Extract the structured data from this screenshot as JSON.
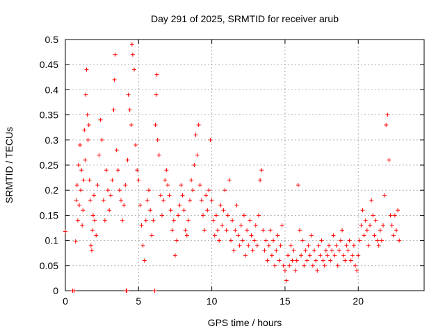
{
  "chart_data": {
    "type": "scatter",
    "title": "Day 291 of 2025, SRMTID for receiver arub",
    "xlabel": "GPS time / hours",
    "ylabel": "SRMTID / TECUs",
    "xlim": [
      0,
      24.5
    ],
    "ylim": [
      0,
      0.5
    ],
    "x_ticks": [
      0,
      5,
      10,
      15,
      20
    ],
    "x_tick_labels": [
      "0",
      "5",
      "10",
      "15",
      "20"
    ],
    "y_ticks": [
      0,
      0.05,
      0.1,
      0.15,
      0.2,
      0.25,
      0.3,
      0.35,
      0.4,
      0.45,
      0.5
    ],
    "y_tick_labels": [
      "0",
      "0.05",
      "0.1",
      "0.15",
      "0.2",
      "0.25",
      "0.3",
      "0.35",
      "0.4",
      "0.45",
      "0.5"
    ],
    "grid": true,
    "marker": "+",
    "color": "#ff0000",
    "series": [
      {
        "name": "SRMTID",
        "points": [
          [
            0.0,
            0.118
          ],
          [
            0.5,
            0.0
          ],
          [
            0.6,
            0.0
          ],
          [
            0.7,
            0.098
          ],
          [
            0.75,
            0.18
          ],
          [
            0.8,
            0.21
          ],
          [
            0.85,
            0.14
          ],
          [
            0.9,
            0.25
          ],
          [
            0.95,
            0.17
          ],
          [
            1.0,
            0.29
          ],
          [
            1.05,
            0.2
          ],
          [
            1.1,
            0.24
          ],
          [
            1.15,
            0.13
          ],
          [
            1.2,
            0.16
          ],
          [
            1.25,
            0.22
          ],
          [
            1.3,
            0.32
          ],
          [
            1.35,
            0.26
          ],
          [
            1.4,
            0.39
          ],
          [
            1.45,
            0.44
          ],
          [
            1.5,
            0.35
          ],
          [
            1.55,
            0.3
          ],
          [
            1.6,
            0.33
          ],
          [
            1.65,
            0.22
          ],
          [
            1.7,
            0.18
          ],
          [
            1.75,
            0.09
          ],
          [
            1.8,
            0.08
          ],
          [
            1.85,
            0.12
          ],
          [
            1.9,
            0.15
          ],
          [
            1.95,
            0.19
          ],
          [
            2.0,
            0.14
          ],
          [
            2.1,
            0.11
          ],
          [
            2.2,
            0.21
          ],
          [
            2.3,
            0.27
          ],
          [
            2.4,
            0.34
          ],
          [
            2.5,
            0.3
          ],
          [
            2.6,
            0.18
          ],
          [
            2.7,
            0.14
          ],
          [
            2.8,
            0.24
          ],
          [
            2.9,
            0.2
          ],
          [
            3.0,
            0.16
          ],
          [
            3.1,
            0.19
          ],
          [
            3.2,
            0.22
          ],
          [
            3.3,
            0.36
          ],
          [
            3.35,
            0.42
          ],
          [
            3.4,
            0.47
          ],
          [
            3.5,
            0.28
          ],
          [
            3.6,
            0.24
          ],
          [
            3.7,
            0.2
          ],
          [
            3.8,
            0.18
          ],
          [
            3.9,
            0.14
          ],
          [
            4.0,
            0.17
          ],
          [
            4.1,
            0.21
          ],
          [
            4.15,
            0.0
          ],
          [
            4.2,
            0.0
          ],
          [
            4.25,
            0.26
          ],
          [
            4.3,
            0.39
          ],
          [
            4.4,
            0.36
          ],
          [
            4.5,
            0.33
          ],
          [
            4.55,
            0.49
          ],
          [
            4.6,
            0.47
          ],
          [
            4.7,
            0.44
          ],
          [
            4.8,
            0.29
          ],
          [
            4.9,
            0.24
          ],
          [
            5.0,
            0.22
          ],
          [
            5.1,
            0.17
          ],
          [
            5.2,
            0.13
          ],
          [
            5.3,
            0.09
          ],
          [
            5.4,
            0.06
          ],
          [
            5.5,
            0.14
          ],
          [
            5.6,
            0.18
          ],
          [
            5.7,
            0.2
          ],
          [
            5.8,
            0.16
          ],
          [
            5.9,
            0.11
          ],
          [
            6.0,
            0.14
          ],
          [
            6.1,
            0.0
          ],
          [
            6.15,
            0.33
          ],
          [
            6.2,
            0.39
          ],
          [
            6.25,
            0.43
          ],
          [
            6.3,
            0.3
          ],
          [
            6.4,
            0.27
          ],
          [
            6.5,
            0.19
          ],
          [
            6.6,
            0.15
          ],
          [
            6.7,
            0.18
          ],
          [
            6.8,
            0.22
          ],
          [
            6.9,
            0.24
          ],
          [
            7.0,
            0.21
          ],
          [
            7.1,
            0.19
          ],
          [
            7.2,
            0.16
          ],
          [
            7.3,
            0.12
          ],
          [
            7.4,
            0.14
          ],
          [
            7.5,
            0.07
          ],
          [
            7.6,
            0.1
          ],
          [
            7.7,
            0.15
          ],
          [
            7.8,
            0.17
          ],
          [
            7.9,
            0.21
          ],
          [
            8.0,
            0.19
          ],
          [
            8.1,
            0.16
          ],
          [
            8.2,
            0.12
          ],
          [
            8.3,
            0.11
          ],
          [
            8.4,
            0.14
          ],
          [
            8.5,
            0.18
          ],
          [
            8.6,
            0.22
          ],
          [
            8.7,
            0.2
          ],
          [
            8.8,
            0.25
          ],
          [
            8.9,
            0.31
          ],
          [
            9.0,
            0.27
          ],
          [
            9.1,
            0.33
          ],
          [
            9.2,
            0.21
          ],
          [
            9.3,
            0.18
          ],
          [
            9.4,
            0.15
          ],
          [
            9.5,
            0.12
          ],
          [
            9.6,
            0.19
          ],
          [
            9.7,
            0.16
          ],
          [
            9.8,
            0.2
          ],
          [
            9.9,
            0.3
          ],
          [
            10.0,
            0.18
          ],
          [
            10.1,
            0.14
          ],
          [
            10.2,
            0.11
          ],
          [
            10.3,
            0.15
          ],
          [
            10.4,
            0.12
          ],
          [
            10.5,
            0.1
          ],
          [
            10.6,
            0.17
          ],
          [
            10.7,
            0.13
          ],
          [
            10.8,
            0.16
          ],
          [
            10.9,
            0.2
          ],
          [
            11.0,
            0.12
          ],
          [
            11.1,
            0.15
          ],
          [
            11.2,
            0.22
          ],
          [
            11.3,
            0.1
          ],
          [
            11.4,
            0.14
          ],
          [
            11.5,
            0.08
          ],
          [
            11.6,
            0.12
          ],
          [
            11.7,
            0.17
          ],
          [
            11.8,
            0.11
          ],
          [
            11.9,
            0.09
          ],
          [
            12.0,
            0.13
          ],
          [
            12.1,
            0.1
          ],
          [
            12.2,
            0.15
          ],
          [
            12.3,
            0.07
          ],
          [
            12.4,
            0.12
          ],
          [
            12.5,
            0.09
          ],
          [
            12.6,
            0.14
          ],
          [
            12.7,
            0.11
          ],
          [
            12.8,
            0.08
          ],
          [
            12.9,
            0.1
          ],
          [
            13.0,
            0.13
          ],
          [
            13.1,
            0.09
          ],
          [
            13.2,
            0.15
          ],
          [
            13.3,
            0.22
          ],
          [
            13.4,
            0.24
          ],
          [
            13.5,
            0.12
          ],
          [
            13.6,
            0.08
          ],
          [
            13.7,
            0.1
          ],
          [
            13.8,
            0.06
          ],
          [
            13.9,
            0.09
          ],
          [
            14.0,
            0.12
          ],
          [
            14.1,
            0.07
          ],
          [
            14.2,
            0.1
          ],
          [
            14.3,
            0.05
          ],
          [
            14.4,
            0.08
          ],
          [
            14.5,
            0.11
          ],
          [
            14.6,
            0.06
          ],
          [
            14.7,
            0.09
          ],
          [
            14.8,
            0.13
          ],
          [
            14.9,
            0.05
          ],
          [
            15.0,
            0.04
          ],
          [
            15.1,
            0.02
          ],
          [
            15.2,
            0.07
          ],
          [
            15.3,
            0.05
          ],
          [
            15.4,
            0.09
          ],
          [
            15.5,
            0.06
          ],
          [
            15.6,
            0.08
          ],
          [
            15.7,
            0.04
          ],
          [
            15.8,
            0.06
          ],
          [
            15.9,
            0.21
          ],
          [
            16.0,
            0.12
          ],
          [
            16.1,
            0.07
          ],
          [
            16.2,
            0.1
          ],
          [
            16.3,
            0.05
          ],
          [
            16.4,
            0.08
          ],
          [
            16.5,
            0.06
          ],
          [
            16.6,
            0.09
          ],
          [
            16.7,
            0.07
          ],
          [
            16.8,
            0.11
          ],
          [
            16.9,
            0.05
          ],
          [
            17.0,
            0.08
          ],
          [
            17.1,
            0.06
          ],
          [
            17.2,
            0.04
          ],
          [
            17.3,
            0.09
          ],
          [
            17.4,
            0.07
          ],
          [
            17.5,
            0.1
          ],
          [
            17.6,
            0.06
          ],
          [
            17.7,
            0.05
          ],
          [
            17.8,
            0.08
          ],
          [
            17.9,
            0.07
          ],
          [
            18.0,
            0.09
          ],
          [
            18.1,
            0.06
          ],
          [
            18.2,
            0.08
          ],
          [
            18.3,
            0.11
          ],
          [
            18.4,
            0.07
          ],
          [
            18.5,
            0.09
          ],
          [
            18.6,
            0.05
          ],
          [
            18.7,
            0.08
          ],
          [
            18.8,
            0.1
          ],
          [
            18.9,
            0.12
          ],
          [
            19.0,
            0.07
          ],
          [
            19.1,
            0.06
          ],
          [
            19.2,
            0.09
          ],
          [
            19.3,
            0.08
          ],
          [
            19.4,
            0.1
          ],
          [
            19.5,
            0.06
          ],
          [
            19.6,
            0.07
          ],
          [
            19.7,
            0.09
          ],
          [
            19.8,
            0.05
          ],
          [
            19.9,
            0.04
          ],
          [
            20.0,
            0.07
          ],
          [
            20.1,
            0.1
          ],
          [
            20.2,
            0.13
          ],
          [
            20.3,
            0.16
          ],
          [
            20.4,
            0.11
          ],
          [
            20.5,
            0.14
          ],
          [
            20.6,
            0.12
          ],
          [
            20.7,
            0.09
          ],
          [
            20.8,
            0.13
          ],
          [
            20.9,
            0.18
          ],
          [
            21.0,
            0.15
          ],
          [
            21.1,
            0.11
          ],
          [
            21.2,
            0.14
          ],
          [
            21.3,
            0.1
          ],
          [
            21.4,
            0.09
          ],
          [
            21.5,
            0.12
          ],
          [
            21.6,
            0.1
          ],
          [
            21.7,
            0.13
          ],
          [
            21.8,
            0.19
          ],
          [
            21.9,
            0.33
          ],
          [
            22.0,
            0.35
          ],
          [
            22.1,
            0.26
          ],
          [
            22.2,
            0.15
          ],
          [
            22.3,
            0.13
          ],
          [
            22.4,
            0.11
          ],
          [
            22.5,
            0.15
          ],
          [
            22.6,
            0.12
          ],
          [
            22.7,
            0.16
          ],
          [
            22.8,
            0.1
          ]
        ]
      }
    ]
  }
}
